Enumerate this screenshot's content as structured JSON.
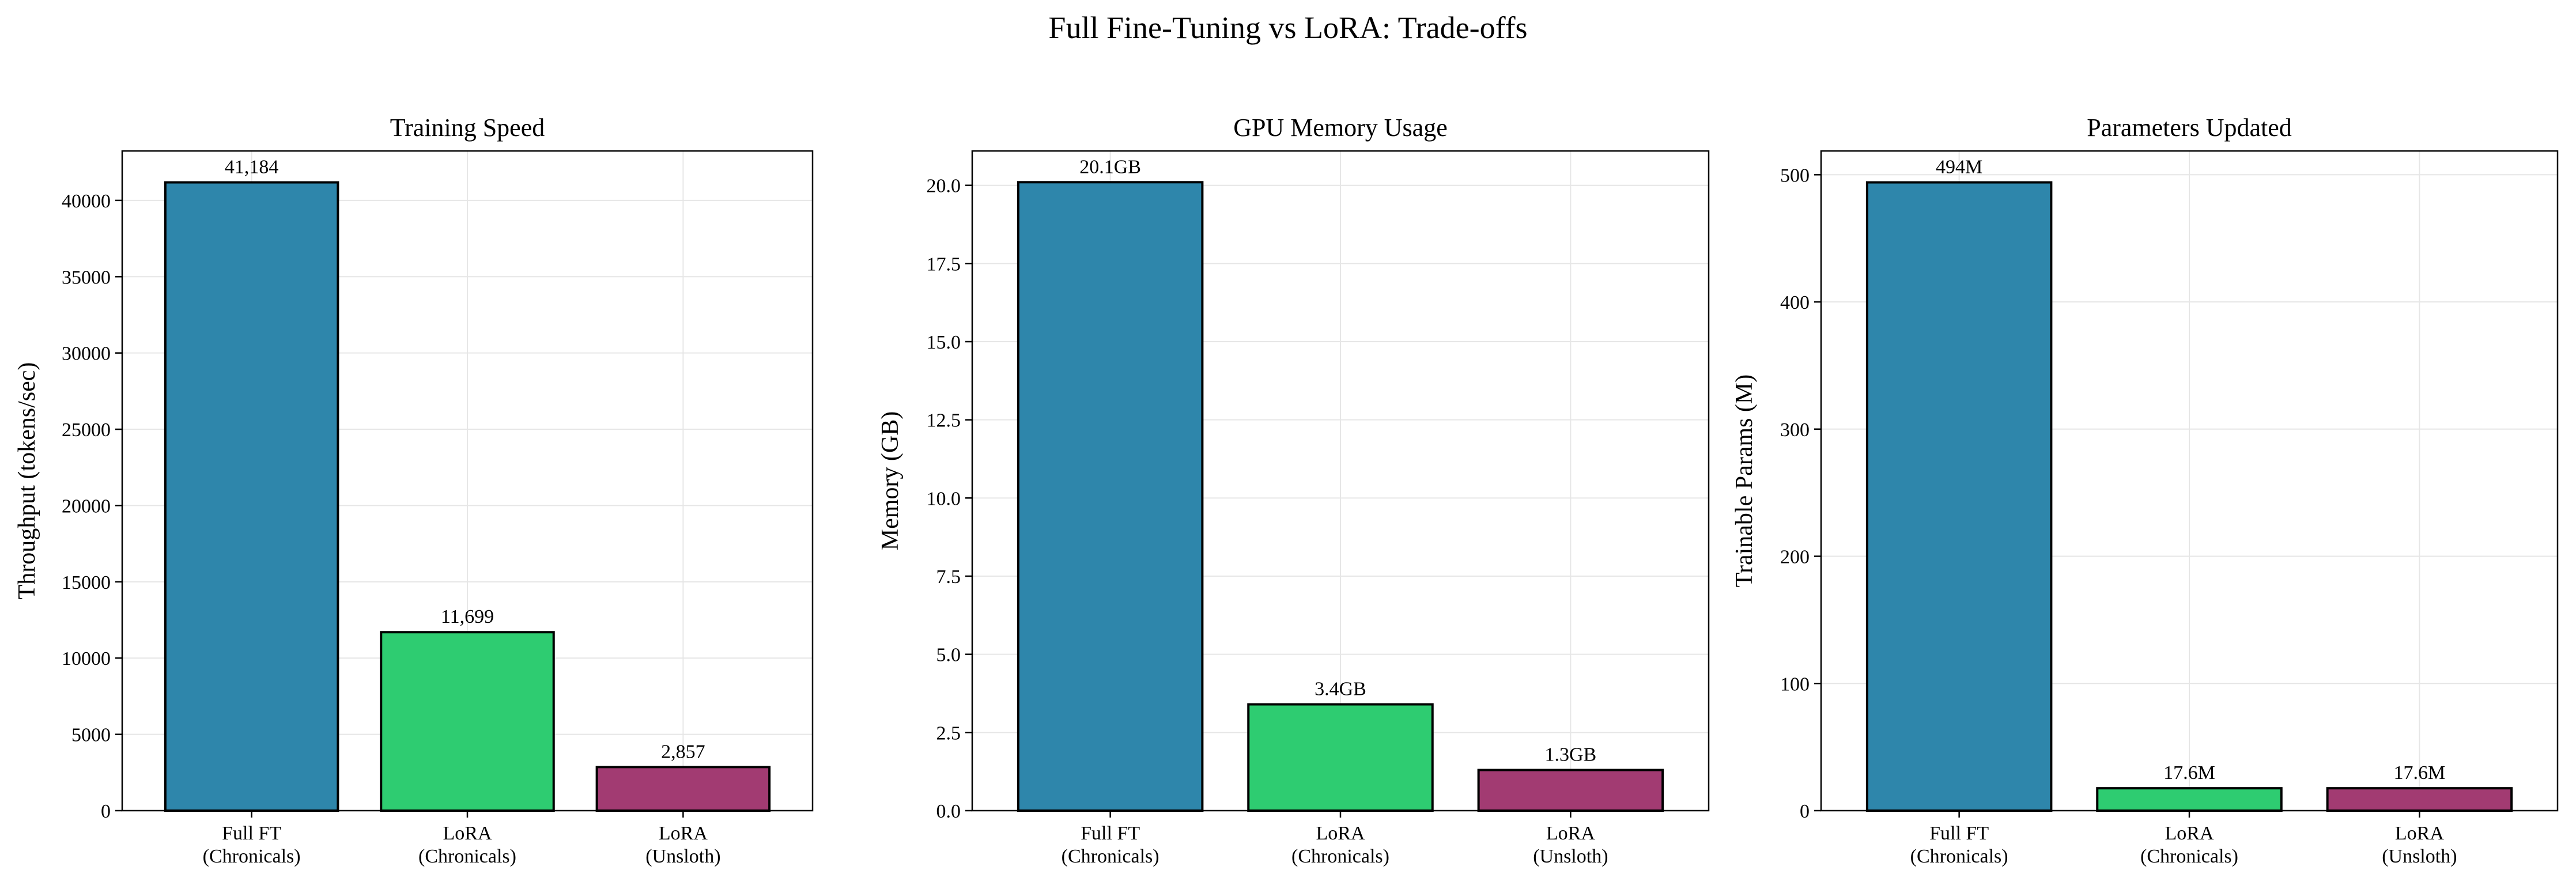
{
  "figure": {
    "title": "Full Fine-Tuning vs LoRA: Trade-offs"
  },
  "chart_data": [
    {
      "type": "bar",
      "title": "Training Speed",
      "ylabel": "Throughput (tokens/sec)",
      "xlabel": "",
      "categories": [
        "Full FT\n(Chronicals)",
        "LoRA\n(Chronicals)",
        "LoRA\n(Unsloth)"
      ],
      "values": [
        41184,
        11699,
        2857
      ],
      "value_labels": [
        "41,184",
        "11,699",
        "2,857"
      ],
      "colors": [
        "#2e86ab",
        "#2ecc71",
        "#a23b72"
      ],
      "ylim": [
        0,
        43243
      ],
      "yticks": [
        0,
        5000,
        10000,
        15000,
        20000,
        25000,
        30000,
        35000,
        40000
      ],
      "ytick_labels": [
        "0",
        "5000",
        "10000",
        "15000",
        "20000",
        "25000",
        "30000",
        "35000",
        "40000"
      ],
      "grid": true
    },
    {
      "type": "bar",
      "title": "GPU Memory Usage",
      "ylabel": "Memory (GB)",
      "xlabel": "",
      "categories": [
        "Full FT\n(Chronicals)",
        "LoRA\n(Chronicals)",
        "LoRA\n(Unsloth)"
      ],
      "values": [
        20.1,
        3.4,
        1.3
      ],
      "value_labels": [
        "20.1GB",
        "3.4GB",
        "1.3GB"
      ],
      "colors": [
        "#2e86ab",
        "#2ecc71",
        "#a23b72"
      ],
      "ylim": [
        0,
        21.1
      ],
      "yticks": [
        0,
        2.5,
        5.0,
        7.5,
        10.0,
        12.5,
        15.0,
        17.5,
        20.0
      ],
      "ytick_labels": [
        "0.0",
        "2.5",
        "5.0",
        "7.5",
        "10.0",
        "12.5",
        "15.0",
        "17.5",
        "20.0"
      ],
      "grid": true
    },
    {
      "type": "bar",
      "title": "Parameters Updated",
      "ylabel": "Trainable Params (M)",
      "xlabel": "",
      "categories": [
        "Full FT\n(Chronicals)",
        "LoRA\n(Chronicals)",
        "LoRA\n(Unsloth)"
      ],
      "values": [
        494,
        17.6,
        17.6
      ],
      "value_labels": [
        "494M",
        "17.6M",
        "17.6M"
      ],
      "colors": [
        "#2e86ab",
        "#2ecc71",
        "#a23b72"
      ],
      "ylim": [
        0,
        518.7
      ],
      "yticks": [
        0,
        100,
        200,
        300,
        400,
        500
      ],
      "ytick_labels": [
        "0",
        "100",
        "200",
        "300",
        "400",
        "500"
      ],
      "grid": true
    }
  ]
}
